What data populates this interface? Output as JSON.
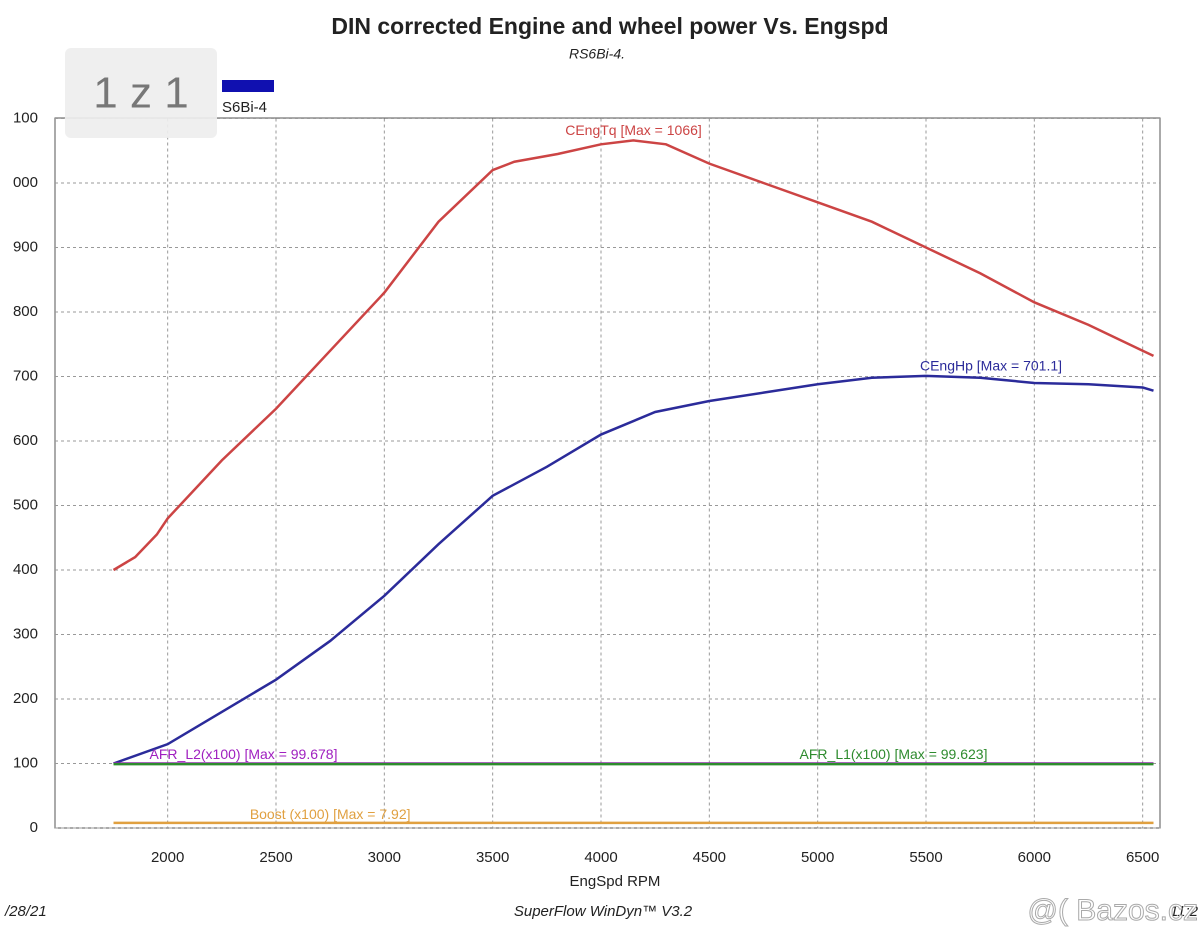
{
  "chart_data": {
    "type": "line",
    "title": "DIN corrected Engine and wheel power Vs. Engspd",
    "subtitle": "RS6Bi-4.",
    "x_label": "EngSpd RPM",
    "footer": {
      "date": "/28/21",
      "software": "SuperFlow WinDyn™ V3.2",
      "time": "11:2"
    },
    "badge": "1 z 1",
    "watermark": "@( Bazos.cz",
    "legend_label": "S6Bi-4",
    "legend_color": "#1010b0",
    "xlim": [
      1480,
      6580
    ],
    "xticks": [
      2000,
      2500,
      3000,
      3500,
      4000,
      4500,
      5000,
      5500,
      6000,
      6500
    ],
    "ylim": [
      0,
      1100
    ],
    "yticks": [
      0,
      100,
      200,
      300,
      400,
      500,
      600,
      700,
      800,
      900,
      {
        "value": 1000,
        "label": "000"
      },
      {
        "value": 1100,
        "label": "100"
      }
    ],
    "grid": true,
    "annotations": [
      {
        "text": "CEngTq [Max = 1066]",
        "x": 4150,
        "y": 1080,
        "color": "#cc4444"
      },
      {
        "text": "CEngHp [Max = 701.1]",
        "x": 5800,
        "y": 715,
        "color": "#2b2b9a"
      },
      {
        "text": "AFR_L2(x100) [Max = 99.678]",
        "x": 2350,
        "y": 113,
        "color": "#a020c0"
      },
      {
        "text": "AFR_L1(x100) [Max = 99.623]",
        "x": 5350,
        "y": 113,
        "color": "#2e8b2e"
      },
      {
        "text": "Boost (x100) [Max = 7.92]",
        "x": 2750,
        "y": 20,
        "color": "#e0a040"
      }
    ],
    "series": [
      {
        "name": "CEngTq",
        "color": "#cc4444",
        "x": [
          1750,
          1850,
          1950,
          2000,
          2250,
          2500,
          2750,
          3000,
          3250,
          3500,
          3600,
          3800,
          4000,
          4150,
          4300,
          4500,
          4750,
          5000,
          5250,
          5500,
          5750,
          6000,
          6250,
          6500,
          6550
        ],
        "values": [
          400,
          420,
          455,
          480,
          570,
          650,
          740,
          830,
          940,
          1020,
          1033,
          1045,
          1060,
          1066,
          1060,
          1030,
          1000,
          970,
          940,
          900,
          860,
          815,
          780,
          740,
          732
        ]
      },
      {
        "name": "CEngHp",
        "color": "#2b2b9a",
        "x": [
          1750,
          2000,
          2250,
          2500,
          2750,
          3000,
          3250,
          3500,
          3750,
          4000,
          4250,
          4500,
          4750,
          5000,
          5250,
          5500,
          5750,
          6000,
          6250,
          6500,
          6550
        ],
        "values": [
          100,
          130,
          180,
          230,
          290,
          360,
          440,
          515,
          560,
          610,
          645,
          662,
          675,
          688,
          698,
          701,
          698,
          690,
          688,
          683,
          678
        ]
      },
      {
        "name": "AFR_L2",
        "color": "#a020c0",
        "x": [
          1750,
          6550
        ],
        "values": [
          100,
          100
        ]
      },
      {
        "name": "AFR_L1",
        "color": "#2e8b2e",
        "x": [
          1750,
          6550
        ],
        "values": [
          99,
          99
        ]
      },
      {
        "name": "Boost",
        "color": "#e0a040",
        "x": [
          1750,
          6550
        ],
        "values": [
          8,
          8
        ]
      }
    ]
  }
}
